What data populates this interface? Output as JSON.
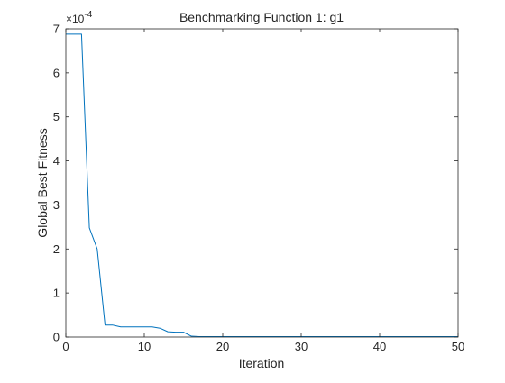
{
  "chart_data": {
    "type": "line",
    "title": "Benchmarking Function 1: g1",
    "xlabel": "Iteration",
    "ylabel": "Global Best Fitness",
    "y_exponent_base": "×10",
    "y_exponent_power": "-4",
    "y_scale": 0.0001,
    "xlim": [
      0,
      50
    ],
    "ylim": [
      0,
      7
    ],
    "xticks": [
      0,
      10,
      20,
      30,
      40,
      50
    ],
    "yticks": [
      0,
      1,
      2,
      3,
      4,
      5,
      6,
      7
    ],
    "grid": false,
    "line_color": "#0072BD",
    "series": [
      {
        "x": [
          0,
          1,
          2,
          3,
          4,
          5,
          6,
          7,
          8,
          9,
          10,
          11,
          12,
          13,
          14,
          15,
          16,
          17,
          18,
          19,
          20,
          21,
          22,
          23,
          24,
          25,
          26,
          27,
          28,
          29,
          30,
          31,
          32,
          33,
          34,
          35,
          36,
          37,
          38,
          39,
          40,
          41,
          42,
          43,
          44,
          45,
          46,
          47,
          48,
          49,
          50
        ],
        "y": [
          6.88,
          6.88,
          6.88,
          2.48,
          2.0,
          0.27,
          0.27,
          0.23,
          0.23,
          0.23,
          0.23,
          0.23,
          0.2,
          0.12,
          0.11,
          0.11,
          0.02,
          0.01,
          0.01,
          0.01,
          0.01,
          0.01,
          0.01,
          0.01,
          0.01,
          0.01,
          0.01,
          0.01,
          0.01,
          0.01,
          0.01,
          0.01,
          0.01,
          0.01,
          0.01,
          0.01,
          0.01,
          0.01,
          0.01,
          0.01,
          0.01,
          0.01,
          0.01,
          0.01,
          0.01,
          0.01,
          0.01,
          0.01,
          0.01,
          0.01,
          0.01
        ]
      }
    ]
  }
}
